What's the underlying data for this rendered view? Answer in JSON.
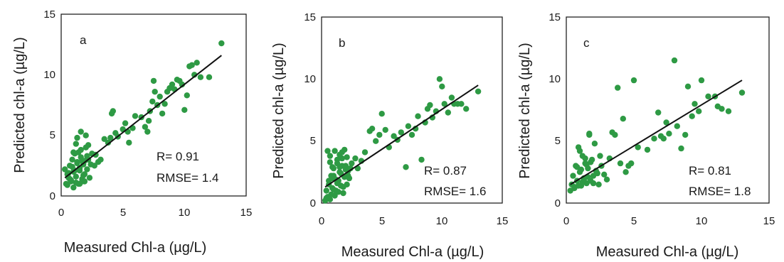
{
  "chart_data": [
    {
      "type": "scatter",
      "panel_label": "a",
      "xlabel": "Measured Chl-a (µg/L)",
      "ylabel": "Predicted chl-a (µg/L)",
      "xlim": [
        0,
        15
      ],
      "ylim": [
        0,
        15
      ],
      "xticks": [
        "0",
        "5",
        "10",
        "15"
      ],
      "yticks": [
        "0",
        "5",
        "10",
        "15"
      ],
      "stats": [
        "R= 0.91",
        "RMSE= 1.4"
      ],
      "marker_color": "#2e9a44",
      "fit_line": {
        "x": [
          0.3,
          13.0
        ],
        "y": [
          1.5,
          11.6
        ]
      },
      "x": [
        0.3,
        0.5,
        0.6,
        0.7,
        0.8,
        0.9,
        1.0,
        1.1,
        1.2,
        1.3,
        1.4,
        1.5,
        1.6,
        1.7,
        1.8,
        1.9,
        2.0,
        2.1,
        2.2,
        2.3,
        2.5,
        2.7,
        3.0,
        0.4,
        0.6,
        0.8,
        0.9,
        1.0,
        1.2,
        1.3,
        1.5,
        1.6,
        1.8,
        1.9,
        2.1,
        2.4,
        2.8,
        0.7,
        1.1,
        1.4,
        1.7,
        2.0,
        1.3,
        1.6,
        2.2,
        0.5,
        1.0,
        1.5,
        1.9,
        1.2,
        1.7,
        3.2,
        3.5,
        3.8,
        4.0,
        4.1,
        4.2,
        4.4,
        4.6,
        5.0,
        5.2,
        5.4,
        5.5,
        5.8,
        6.0,
        6.5,
        6.8,
        7.0,
        7.1,
        7.2,
        7.4,
        7.5,
        7.6,
        7.8,
        8.0,
        8.2,
        8.4,
        8.6,
        8.8,
        9.0,
        9.2,
        9.4,
        9.6,
        9.8,
        10.0,
        10.2,
        10.4,
        10.6,
        10.8,
        11.0,
        11.3,
        12.0,
        13.0
      ],
      "y": [
        2.2,
        1.8,
        1.5,
        2.5,
        1.2,
        3.0,
        2.0,
        3.5,
        1.6,
        2.8,
        1.0,
        2.3,
        3.2,
        1.4,
        2.6,
        1.8,
        4.0,
        2.2,
        3.0,
        1.5,
        3.5,
        2.5,
        2.8,
        1.0,
        1.9,
        1.3,
        2.4,
        3.6,
        1.1,
        2.7,
        2.1,
        3.8,
        1.7,
        2.9,
        3.3,
        2.6,
        3.4,
        1.4,
        2.1,
        3.6,
        1.2,
        5.0,
        4.8,
        5.3,
        4.2,
        0.9,
        0.7,
        1.0,
        1.2,
        4.3,
        2.9,
        3.0,
        4.7,
        4.4,
        4.8,
        6.8,
        7.0,
        5.2,
        4.9,
        5.5,
        6.0,
        5.3,
        4.4,
        5.6,
        6.6,
        6.5,
        5.7,
        5.3,
        6.2,
        7.0,
        7.8,
        9.5,
        8.6,
        7.5,
        8.2,
        6.8,
        7.6,
        8.6,
        8.9,
        9.2,
        8.8,
        9.6,
        9.5,
        9.2,
        7.1,
        8.3,
        10.7,
        10.8,
        10.0,
        11.0,
        9.8,
        9.8,
        12.6
      ]
    },
    {
      "type": "scatter",
      "panel_label": "b",
      "xlabel": "Measured Chl-a (µg/L)",
      "ylabel": "Predicted chl-a (µg/L)",
      "xlim": [
        0,
        15
      ],
      "ylim": [
        0,
        15
      ],
      "xticks": [
        "0",
        "5",
        "10",
        "15"
      ],
      "yticks": [
        "0",
        "5",
        "10",
        "15"
      ],
      "stats": [
        "R= 0.87",
        "RMSE= 1.6"
      ],
      "marker_color": "#2e9a44",
      "fit_line": {
        "x": [
          0.3,
          13.0
        ],
        "y": [
          1.3,
          9.5
        ]
      },
      "x": [
        0.3,
        0.4,
        0.5,
        0.6,
        0.7,
        0.8,
        0.9,
        1.0,
        1.1,
        1.2,
        1.3,
        1.4,
        1.5,
        1.6,
        1.7,
        1.8,
        1.9,
        2.0,
        2.1,
        2.2,
        2.3,
        0.5,
        0.7,
        0.9,
        1.1,
        1.3,
        1.5,
        1.7,
        1.9,
        2.1,
        2.4,
        0.6,
        0.8,
        1.0,
        1.2,
        1.4,
        1.6,
        1.8,
        2.0,
        0.4,
        0.9,
        1.3,
        1.7,
        2.2,
        0.7,
        1.0,
        1.5,
        2.5,
        2.8,
        3.0,
        3.3,
        3.6,
        4.0,
        4.2,
        4.5,
        4.8,
        5.0,
        5.3,
        5.6,
        6.0,
        6.3,
        6.6,
        7.0,
        7.2,
        7.5,
        7.8,
        8.0,
        8.3,
        8.6,
        8.8,
        9.0,
        9.2,
        9.5,
        9.8,
        10.0,
        10.2,
        10.5,
        10.8,
        11.0,
        11.3,
        11.6,
        12.0,
        13.0
      ],
      "y": [
        0.2,
        1.0,
        0.5,
        1.8,
        0.3,
        2.2,
        1.2,
        2.8,
        0.6,
        1.9,
        3.2,
        0.9,
        2.5,
        1.4,
        3.6,
        0.8,
        2.1,
        3.0,
        1.5,
        2.6,
        2.0,
        4.2,
        3.8,
        2.9,
        4.2,
        3.5,
        3.9,
        4.1,
        4.3,
        3.7,
        2.8,
        1.5,
        0.7,
        2.2,
        1.0,
        1.8,
        2.4,
        1.3,
        2.7,
        0.4,
        2.0,
        1.6,
        3.0,
        2.2,
        3.3,
        1.1,
        2.9,
        3.2,
        3.6,
        2.8,
        3.4,
        4.1,
        5.8,
        6.0,
        5.0,
        5.5,
        7.2,
        5.9,
        4.5,
        5.4,
        5.1,
        5.7,
        2.9,
        6.2,
        5.5,
        6.0,
        7.0,
        3.5,
        6.5,
        7.6,
        7.9,
        6.9,
        7.4,
        10.0,
        9.4,
        8.0,
        7.3,
        8.5,
        8.0,
        8.0,
        8.0,
        7.6,
        9.0
      ]
    },
    {
      "type": "scatter",
      "panel_label": "c",
      "xlabel": "Measured Chl-a (µg/L)",
      "ylabel": "Predicted chl-a (µg/L)",
      "xlim": [
        0,
        15
      ],
      "ylim": [
        0,
        15
      ],
      "xticks": [
        "0",
        "5",
        "10",
        "15"
      ],
      "yticks": [
        "0",
        "5",
        "10",
        "15"
      ],
      "stats": [
        "R= 0.81",
        "RMSE= 1.8"
      ],
      "marker_color": "#2e9a44",
      "fit_line": {
        "x": [
          0.3,
          13.0
        ],
        "y": [
          1.5,
          9.9
        ]
      },
      "x": [
        0.3,
        0.4,
        0.5,
        0.6,
        0.7,
        0.8,
        0.9,
        1.0,
        1.1,
        1.2,
        1.3,
        1.4,
        1.5,
        1.6,
        1.7,
        1.8,
        1.9,
        2.0,
        2.1,
        2.2,
        2.4,
        2.6,
        2.8,
        3.0,
        0.6,
        0.8,
        1.0,
        1.2,
        1.4,
        1.6,
        1.8,
        2.0,
        2.3,
        0.9,
        1.3,
        1.7,
        2.5,
        1.1,
        1.5,
        3.2,
        3.4,
        3.6,
        3.8,
        4.0,
        4.2,
        4.4,
        4.6,
        4.8,
        5.0,
        5.3,
        6.0,
        6.5,
        6.8,
        7.0,
        7.2,
        7.4,
        7.6,
        8.0,
        8.2,
        8.5,
        8.8,
        9.0,
        9.3,
        9.5,
        9.8,
        10.0,
        10.5,
        11.0,
        11.2,
        11.5,
        12.0,
        13.0
      ],
      "y": [
        1.0,
        1.5,
        2.2,
        1.2,
        3.0,
        1.8,
        4.5,
        2.5,
        1.4,
        3.8,
        2.0,
        3.2,
        1.6,
        2.8,
        5.5,
        1.8,
        3.5,
        2.2,
        4.8,
        2.6,
        1.5,
        3.0,
        2.3,
        1.9,
        1.3,
        2.9,
        4.2,
        1.7,
        3.6,
        2.1,
        3.3,
        1.6,
        2.4,
        1.4,
        1.9,
        5.6,
        3.8,
        2.7,
        3.1,
        3.6,
        5.7,
        5.5,
        9.3,
        3.2,
        6.8,
        2.5,
        3.0,
        3.2,
        9.9,
        4.5,
        4.3,
        5.2,
        7.3,
        5.4,
        5.2,
        6.5,
        5.6,
        11.5,
        6.2,
        4.4,
        5.5,
        9.4,
        7.0,
        8.0,
        7.4,
        9.9,
        8.6,
        8.6,
        7.8,
        7.6,
        7.4,
        8.9
      ]
    }
  ]
}
